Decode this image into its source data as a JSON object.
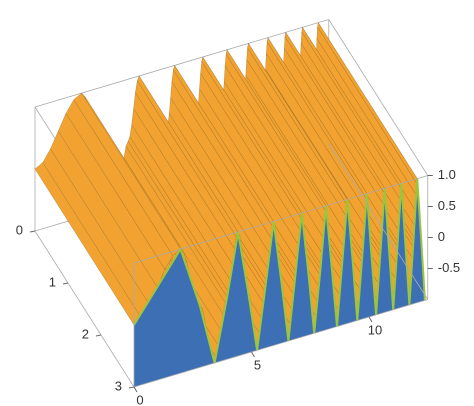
{
  "chart_data": {
    "type": "surface3d",
    "x": [
      0,
      1.98,
      2.8,
      3.43,
      3.96,
      4.43,
      4.85,
      5.24,
      5.6,
      5.94,
      6.27,
      6.57,
      6.86,
      7.14,
      7.42,
      7.67,
      7.93,
      8.17,
      8.41,
      8.64,
      8.86,
      9.08,
      9.3,
      9.5,
      9.71,
      9.91,
      10.1,
      10.3,
      10.49,
      10.67,
      10.85,
      11.03,
      11.21,
      11.38,
      11.55,
      11.72,
      11.89,
      12.05,
      12.22,
      12.38
    ],
    "values": [
      0,
      1,
      0,
      -1,
      0,
      1,
      0,
      -1,
      0,
      1,
      0,
      -1,
      0,
      1,
      0,
      -1,
      0,
      1,
      0,
      -1,
      0,
      1,
      0,
      -1,
      0,
      1,
      0,
      -1,
      0,
      1,
      0,
      -1,
      0,
      1,
      0,
      -1,
      0,
      1,
      0,
      -1
    ],
    "top_color": "#f2a230",
    "bottom_color": "#3d6fb5",
    "xlim": [
      0,
      12.5
    ],
    "xticks": [
      0,
      5,
      10
    ],
    "ylim": [
      0,
      3
    ],
    "yticks": [
      0,
      1,
      2,
      3
    ],
    "zlim": [
      -1,
      1
    ],
    "zticks": [
      -0.5,
      0,
      0.5,
      {
        "value": 1,
        "label": "1.0"
      }
    ]
  }
}
